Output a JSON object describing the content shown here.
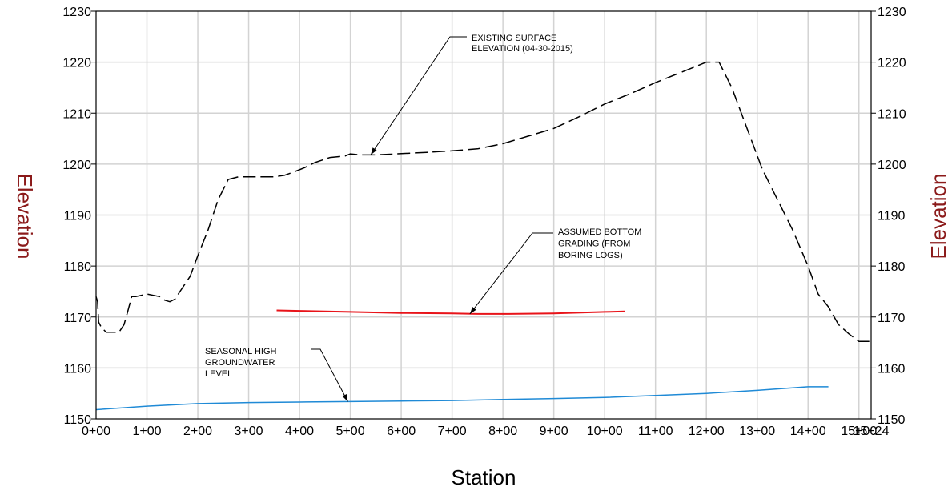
{
  "chart_data": {
    "type": "line",
    "title": "",
    "xlabel": "Station",
    "ylabel_left": "Elevation",
    "ylabel_right": "Elevation",
    "xlim": [
      0,
      15.24
    ],
    "ylim": [
      1150,
      1230
    ],
    "grid": true,
    "colors": {
      "axis_title": "#8b1a1a",
      "grid": "#d3d3d3",
      "surface": "#000000",
      "bottom": "#e8141a",
      "groundwater": "#1f8ad6"
    },
    "x_ticks": [
      {
        "value": 0,
        "label": "0+00"
      },
      {
        "value": 1,
        "label": "1+00"
      },
      {
        "value": 2,
        "label": "2+00"
      },
      {
        "value": 3,
        "label": "3+00"
      },
      {
        "value": 4,
        "label": "4+00"
      },
      {
        "value": 5,
        "label": "5+00"
      },
      {
        "value": 6,
        "label": "6+00"
      },
      {
        "value": 7,
        "label": "7+00"
      },
      {
        "value": 8,
        "label": "8+00"
      },
      {
        "value": 9,
        "label": "9+00"
      },
      {
        "value": 10,
        "label": "10+00"
      },
      {
        "value": 11,
        "label": "11+00"
      },
      {
        "value": 12,
        "label": "12+00"
      },
      {
        "value": 13,
        "label": "13+00"
      },
      {
        "value": 14,
        "label": "14+00"
      },
      {
        "value": 15,
        "label": "15+00"
      },
      {
        "value": 15.24,
        "label": "15+24"
      }
    ],
    "y_ticks": [
      1150,
      1160,
      1170,
      1180,
      1190,
      1200,
      1210,
      1220,
      1230
    ],
    "series": [
      {
        "key": "surface",
        "style": "dashed",
        "x": [
          0,
          0.03,
          0.05,
          0.1,
          0.2,
          0.3,
          0.45,
          0.55,
          0.62,
          0.7,
          0.78,
          1.0,
          1.25,
          1.35,
          1.45,
          1.55,
          1.65,
          1.85,
          2.0,
          2.2,
          2.4,
          2.6,
          2.8,
          3.0,
          3.2,
          3.5,
          3.7,
          3.9,
          4.1,
          4.3,
          4.6,
          4.9,
          5.0,
          5.2,
          5.5,
          5.9,
          6.5,
          7.0,
          7.5,
          8.0,
          8.5,
          9.0,
          9.5,
          10.0,
          10.5,
          11.0,
          11.5,
          12.0,
          12.25,
          12.5,
          12.8,
          13.1,
          13.4,
          13.7,
          14.0,
          14.2,
          14.4,
          14.6,
          14.8,
          15.0,
          15.24
        ],
        "y": [
          1174,
          1173,
          1169,
          1168,
          1167,
          1167,
          1167,
          1168.5,
          1171,
          1174,
          1174,
          1174.5,
          1174,
          1173.3,
          1173,
          1173.5,
          1175,
          1178,
          1182,
          1187,
          1193,
          1197,
          1197.5,
          1197.5,
          1197.5,
          1197.5,
          1197.8,
          1198.5,
          1199.3,
          1200.3,
          1201.3,
          1201.6,
          1202,
          1201.8,
          1201.8,
          1202,
          1202.3,
          1202.6,
          1203,
          1204,
          1205.5,
          1207,
          1209.3,
          1211.8,
          1213.8,
          1216,
          1218,
          1220,
          1220,
          1215,
          1207,
          1199,
          1193,
          1187,
          1180,
          1174.5,
          1172,
          1168.5,
          1166.7,
          1165.2,
          1165.2
        ]
      },
      {
        "key": "bottom",
        "style": "solid",
        "x": [
          3.55,
          4.0,
          5.0,
          6.0,
          7.0,
          7.5,
          8.0,
          9.0,
          10.0,
          10.4
        ],
        "y": [
          1171.3,
          1171.2,
          1171.0,
          1170.8,
          1170.7,
          1170.6,
          1170.6,
          1170.7,
          1171.0,
          1171.1
        ]
      },
      {
        "key": "groundwater",
        "style": "solid",
        "x": [
          0,
          1.0,
          2.0,
          3.0,
          4.0,
          5.0,
          6.0,
          7.0,
          8.0,
          9.0,
          10.0,
          11.0,
          12.0,
          13.0,
          14.0,
          14.4
        ],
        "y": [
          1151.8,
          1152.5,
          1153.0,
          1153.2,
          1153.3,
          1153.4,
          1153.5,
          1153.6,
          1153.8,
          1154.0,
          1154.2,
          1154.6,
          1155.0,
          1155.6,
          1156.3,
          1156.3
        ]
      }
    ],
    "annotations": [
      {
        "lines": [
          "EXISTING SURFACE",
          "ELEVATION (04-30-2015)"
        ],
        "target": [
          5.4,
          1201.8
        ]
      },
      {
        "lines": [
          "ASSUMED BOTTOM",
          "GRADING (FROM",
          "BORING LOGS)"
        ],
        "target": [
          7.35,
          1170.6
        ]
      },
      {
        "lines": [
          "SEASONAL HIGH",
          "GROUNDWATER",
          "LEVEL"
        ],
        "target": [
          4.95,
          1153.4
        ]
      }
    ]
  }
}
